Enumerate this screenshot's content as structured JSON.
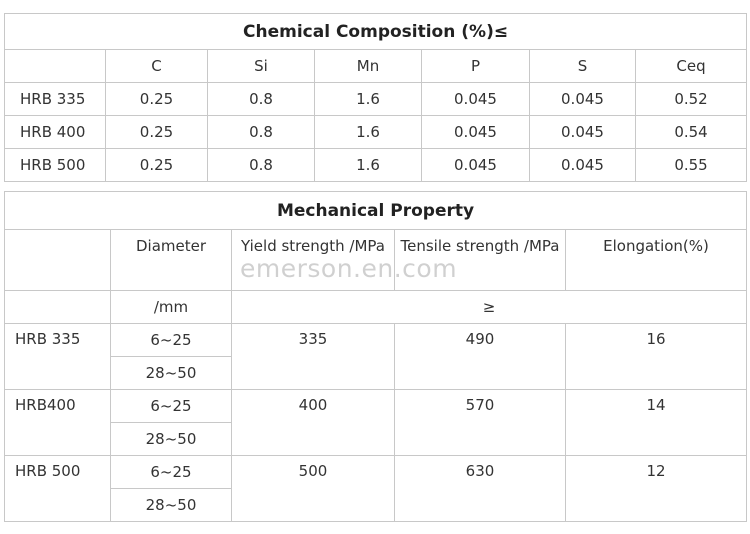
{
  "chemical": {
    "title": "Chemical Composition    (%)≤",
    "columns": [
      "C",
      "Si",
      "Mn",
      "P",
      "S",
      "Ceq"
    ],
    "rows": [
      {
        "grade": "HRB 335",
        "values": [
          "0.25",
          "0.8",
          "1.6",
          "0.045",
          "0.045",
          "0.52"
        ]
      },
      {
        "grade": "HRB 400",
        "values": [
          "0.25",
          "0.8",
          "1.6",
          "0.045",
          "0.045",
          "0.54"
        ]
      },
      {
        "grade": "HRB 500",
        "values": [
          "0.25",
          "0.8",
          "1.6",
          "0.045",
          "0.045",
          "0.55"
        ]
      }
    ]
  },
  "mechanical": {
    "title": "Mechanical Property",
    "headers": {
      "diameter": "Diameter",
      "yield": "Yield strength /MPa",
      "tensile": "Tensile strength /MPa",
      "elongation": "Elongation(%)"
    },
    "unit_row": {
      "diameter_unit": "/mm",
      "min_symbol": "≥"
    },
    "rows": [
      {
        "grade": "HRB 335",
        "diameters": [
          "6~25",
          "28~50"
        ],
        "yield": "335",
        "tensile": "490",
        "elongation": "16"
      },
      {
        "grade": "HRB400",
        "diameters": [
          "6~25",
          "28~50"
        ],
        "yield": "400",
        "tensile": "570",
        "elongation": "14"
      },
      {
        "grade": "HRB 500",
        "diameters": [
          "6~25",
          "28~50"
        ],
        "yield": "500",
        "tensile": "630",
        "elongation": "12"
      }
    ]
  },
  "watermark": "emerson.en.com"
}
